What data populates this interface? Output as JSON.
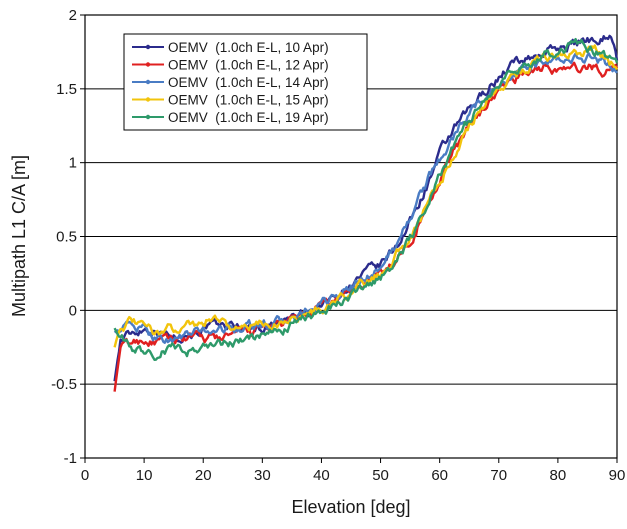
{
  "chart_data": {
    "type": "line",
    "title": "",
    "xlabel": "Elevation [deg]",
    "ylabel": "Multipath L1 C/A [m]",
    "xlim": [
      0,
      90
    ],
    "ylim": [
      -1,
      2
    ],
    "x_ticks": [
      0,
      10,
      20,
      30,
      40,
      50,
      60,
      70,
      80,
      90
    ],
    "y_ticks": [
      -1,
      -0.5,
      0,
      0.5,
      1,
      1.5,
      2
    ],
    "x_tick_labels": [
      "0",
      "10",
      "20",
      "30",
      "40",
      "50",
      "60",
      "70",
      "80",
      "90"
    ],
    "y_tick_labels": [
      "-1",
      "-0.5",
      "0",
      "0.5",
      "1",
      "1.5",
      "2"
    ],
    "grid": "horizontal",
    "legend_position": "top-left",
    "series": [
      {
        "name": "OEMV  (1.0ch E-L, 10 Apr)",
        "color": "#2b2b8c",
        "marker": "diamond",
        "x": [
          5,
          6,
          8,
          10,
          12,
          15,
          18,
          20,
          25,
          30,
          33,
          35,
          38,
          40,
          42,
          45,
          48,
          50,
          52,
          54,
          56,
          58,
          60,
          62,
          64,
          66,
          68,
          70,
          72,
          74,
          76,
          78,
          80,
          82,
          84,
          86,
          88,
          89,
          90
        ],
        "y": [
          -0.48,
          -0.2,
          -0.15,
          -0.12,
          -0.13,
          -0.18,
          -0.15,
          -0.12,
          -0.1,
          -0.12,
          -0.09,
          -0.05,
          -0.02,
          0.05,
          0.08,
          0.18,
          0.26,
          0.3,
          0.4,
          0.52,
          0.68,
          0.86,
          1.05,
          1.2,
          1.3,
          1.4,
          1.5,
          1.58,
          1.66,
          1.7,
          1.72,
          1.75,
          1.78,
          1.8,
          1.82,
          1.84,
          1.86,
          1.88,
          1.7
        ]
      },
      {
        "name": "OEMV  (1.0ch E-L, 12 Apr)",
        "color": "#e02020",
        "marker": "triangle",
        "x": [
          5,
          6,
          8,
          10,
          12,
          15,
          18,
          20,
          25,
          30,
          33,
          35,
          38,
          40,
          42,
          45,
          48,
          50,
          52,
          54,
          56,
          58,
          60,
          62,
          64,
          66,
          68,
          70,
          72,
          74,
          76,
          78,
          80,
          82,
          84,
          86,
          88,
          90
        ],
        "y": [
          -0.55,
          -0.25,
          -0.22,
          -0.2,
          -0.22,
          -0.2,
          -0.18,
          -0.2,
          -0.17,
          -0.13,
          -0.1,
          -0.07,
          -0.02,
          0.02,
          0.06,
          0.13,
          0.2,
          0.25,
          0.32,
          0.42,
          0.55,
          0.72,
          0.9,
          1.05,
          1.18,
          1.3,
          1.4,
          1.48,
          1.55,
          1.6,
          1.63,
          1.65,
          1.63,
          1.62,
          1.64,
          1.65,
          1.62,
          1.64
        ]
      },
      {
        "name": "OEMV  (1.0ch E-L, 14 Apr)",
        "color": "#4a7cc4",
        "marker": "circle",
        "x": [
          5,
          6,
          8,
          10,
          12,
          15,
          18,
          20,
          25,
          30,
          33,
          35,
          38,
          40,
          42,
          45,
          48,
          50,
          52,
          54,
          56,
          58,
          60,
          62,
          64,
          66,
          68,
          70,
          72,
          74,
          76,
          78,
          80,
          82,
          84,
          86,
          88,
          90
        ],
        "y": [
          -0.15,
          -0.12,
          -0.1,
          -0.14,
          -0.18,
          -0.2,
          -0.16,
          -0.14,
          -0.12,
          -0.1,
          -0.08,
          -0.06,
          -0.02,
          0.03,
          0.08,
          0.15,
          0.24,
          0.3,
          0.4,
          0.55,
          0.72,
          0.88,
          1.02,
          1.15,
          1.28,
          1.38,
          1.46,
          1.52,
          1.58,
          1.62,
          1.64,
          1.66,
          1.68,
          1.7,
          1.72,
          1.7,
          1.66,
          1.64
        ]
      },
      {
        "name": "OEMV  (1.0ch E-L, 15 Apr)",
        "color": "#f2c40c",
        "marker": "square",
        "x": [
          5,
          6,
          8,
          10,
          12,
          15,
          18,
          20,
          22,
          25,
          30,
          33,
          35,
          38,
          40,
          42,
          45,
          48,
          50,
          52,
          54,
          56,
          58,
          60,
          62,
          64,
          66,
          68,
          70,
          72,
          74,
          76,
          78,
          80,
          82,
          84,
          86,
          88,
          90
        ],
        "y": [
          -0.25,
          -0.1,
          -0.08,
          -0.12,
          -0.15,
          -0.12,
          -0.08,
          -0.1,
          -0.02,
          -0.12,
          -0.1,
          -0.08,
          -0.05,
          -0.03,
          0.0,
          0.05,
          0.12,
          0.2,
          0.25,
          0.33,
          0.45,
          0.58,
          0.72,
          0.88,
          1.02,
          1.18,
          1.3,
          1.42,
          1.5,
          1.58,
          1.64,
          1.68,
          1.72,
          1.76,
          1.74,
          1.75,
          1.78,
          1.7,
          1.66
        ]
      },
      {
        "name": "OEMV  (1.0ch E-L, 19 Apr)",
        "color": "#2e9a6a",
        "marker": "circle",
        "x": [
          5,
          6,
          8,
          10,
          12,
          15,
          18,
          20,
          25,
          30,
          33,
          35,
          38,
          40,
          42,
          45,
          48,
          50,
          52,
          54,
          56,
          58,
          60,
          62,
          64,
          66,
          68,
          70,
          72,
          74,
          76,
          78,
          80,
          82,
          84,
          86,
          88,
          90
        ],
        "y": [
          -0.12,
          -0.2,
          -0.25,
          -0.28,
          -0.3,
          -0.25,
          -0.28,
          -0.24,
          -0.22,
          -0.18,
          -0.14,
          -0.1,
          -0.05,
          0.0,
          0.04,
          0.1,
          0.16,
          0.22,
          0.3,
          0.42,
          0.56,
          0.74,
          0.92,
          1.08,
          1.22,
          1.34,
          1.44,
          1.52,
          1.6,
          1.66,
          1.7,
          1.74,
          1.76,
          1.78,
          1.8,
          1.76,
          1.72,
          1.68
        ]
      }
    ]
  }
}
